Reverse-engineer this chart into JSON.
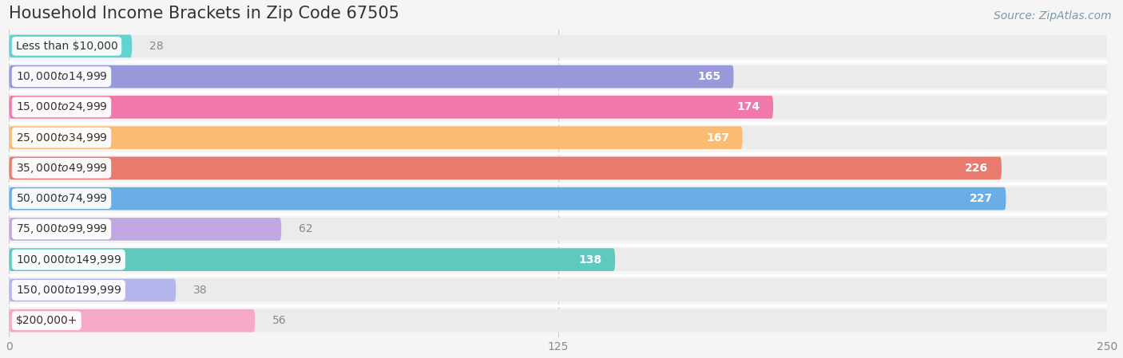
{
  "title": "Household Income Brackets in Zip Code 67505",
  "source_text": "Source: ZipAtlas.com",
  "categories": [
    "Less than $10,000",
    "$10,000 to $14,999",
    "$15,000 to $24,999",
    "$25,000 to $34,999",
    "$35,000 to $49,999",
    "$50,000 to $74,999",
    "$75,000 to $99,999",
    "$100,000 to $149,999",
    "$150,000 to $199,999",
    "$200,000+"
  ],
  "values": [
    28,
    165,
    174,
    167,
    226,
    227,
    62,
    138,
    38,
    56
  ],
  "bar_colors": [
    "#63d3cf",
    "#9898db",
    "#f178aa",
    "#f9bc72",
    "#e87b6e",
    "#6aaee8",
    "#c2a8e2",
    "#5fc9c0",
    "#b5b5ee",
    "#f5a8c8"
  ],
  "inside_threshold": 100,
  "xlim": [
    0,
    250
  ],
  "xticks": [
    0,
    125,
    250
  ],
  "background_color": "#f5f5f5",
  "row_bg_color": "#ebebeb",
  "title_fontsize": 15,
  "label_fontsize": 10,
  "value_fontsize": 10,
  "source_fontsize": 10
}
